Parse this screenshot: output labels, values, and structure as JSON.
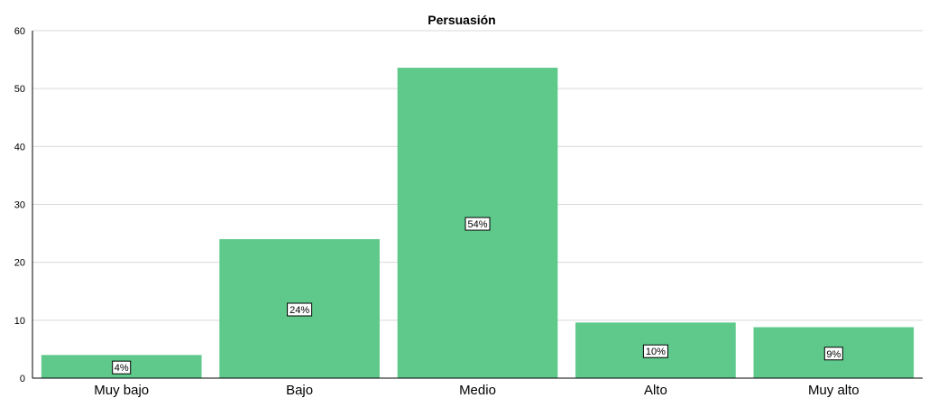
{
  "chart_data": {
    "type": "bar",
    "title": "Persuasión",
    "categories": [
      "Muy bajo",
      "Bajo",
      "Medio",
      "Alto",
      "Muy alto"
    ],
    "values": [
      4,
      24,
      53.6,
      9.6,
      8.8
    ],
    "data_labels": [
      "4%",
      "24%",
      "54%",
      "10%",
      "9%"
    ],
    "ylim": [
      0,
      60
    ],
    "yticks": [
      0,
      10,
      20,
      30,
      40,
      50,
      60
    ],
    "grid": true,
    "bar_color": "#5ec98b"
  }
}
